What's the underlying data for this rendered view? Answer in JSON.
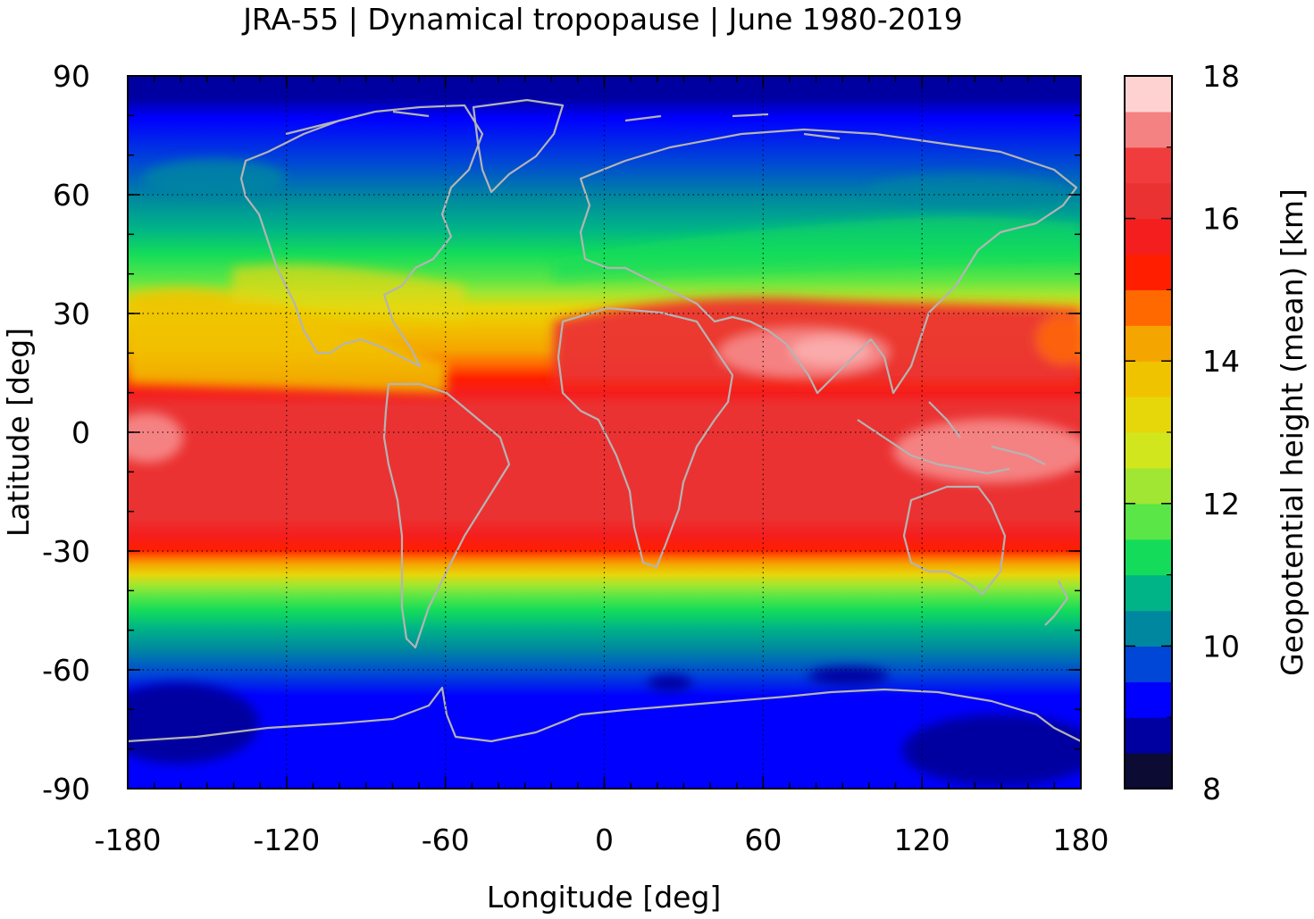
{
  "title": "JRA-55 | Dynamical tropopause | June 1980-2019",
  "map": {
    "projection": "equirectangular",
    "xlabel": "Longitude [deg]",
    "ylabel": "Latitude [deg]",
    "x_range": [
      -180,
      180
    ],
    "y_range": [
      -90,
      90
    ],
    "x_ticks": [
      "-180",
      "-120",
      "-60",
      "0",
      "60",
      "120",
      "180"
    ],
    "y_ticks": [
      "90",
      "60",
      "30",
      "0",
      "-30",
      "-60",
      "-90"
    ],
    "gridlines": "dotted",
    "coastlines_color": "#b4b4b4",
    "field": "Geopotential height (mean)",
    "features": [
      "High tropopause (16-17 km) over Tibetan Plateau / South Asian monsoon region",
      "High tropopause (16-17 km) over western Pacific warm pool",
      "Low tropopause (8-9 km) over Antarctica and Southern Ocean"
    ]
  },
  "colorbar": {
    "label": "Geopotential height (mean) [km]",
    "range": [
      8,
      18
    ],
    "step": 0.5,
    "ticks": [
      "18",
      "16",
      "14",
      "12",
      "10",
      "8"
    ],
    "colors": [
      "#0b0b33",
      "#0000a0",
      "#0000ff",
      "#0046d7",
      "#0087a0",
      "#00b487",
      "#14dc5a",
      "#5ae646",
      "#a0e632",
      "#d2e61e",
      "#e6d70a",
      "#f0c300",
      "#f5a500",
      "#ff6900",
      "#ff1e00",
      "#f51e1e",
      "#eb3232",
      "#f03c3c",
      "#f58282",
      "#ffd2d2"
    ]
  }
}
